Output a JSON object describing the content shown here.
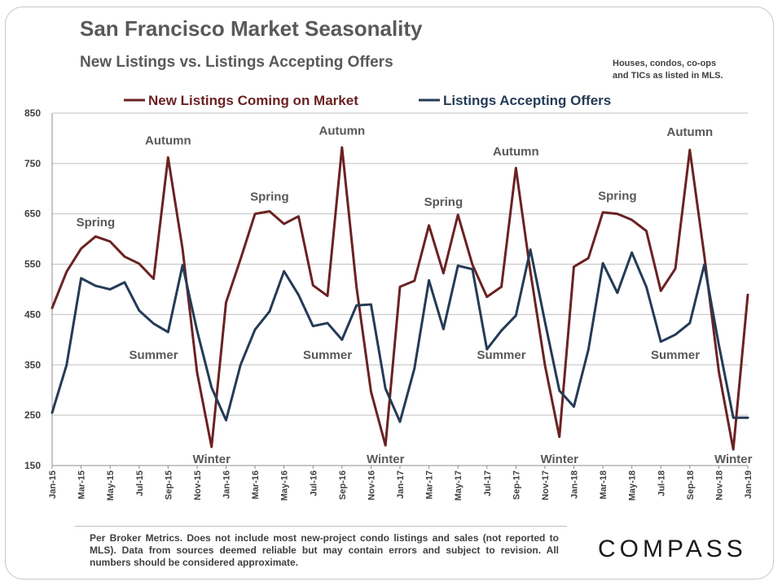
{
  "header": {
    "title": "San Francisco Market Seasonality",
    "subtitle": "New Listings vs. Listings Accepting Offers",
    "note_line1": "Houses, condos, co-ops",
    "note_line2": "and TICs as listed in MLS."
  },
  "footer": {
    "footnote": "Per Broker Metrics. Does not include most new-project condo listings and sales (not reported to MLS). Data from sources deemed reliable but may contain errors and subject to revision. All numbers should be considered approximate.",
    "logo": "COMPASS"
  },
  "colors": {
    "new_listings": "#6b2222",
    "accepting_offers": "#243b56",
    "grid": "#bfbfbf",
    "text": "#595959"
  },
  "chart_data": {
    "type": "line",
    "title": "San Francisco Market Seasonality",
    "subtitle": "New Listings vs. Listings Accepting Offers",
    "ylim": [
      150,
      850
    ],
    "yticks": [
      150,
      250,
      350,
      450,
      550,
      650,
      750,
      850
    ],
    "grid": true,
    "legend_position": "top",
    "x": [
      "Jan-15",
      "Feb-15",
      "Mar-15",
      "Apr-15",
      "May-15",
      "Jun-15",
      "Jul-15",
      "Aug-15",
      "Sep-15",
      "Oct-15",
      "Nov-15",
      "Dec-15",
      "Jan-16",
      "Feb-16",
      "Mar-16",
      "Apr-16",
      "May-16",
      "Jun-16",
      "Jul-16",
      "Aug-16",
      "Sep-16",
      "Oct-16",
      "Nov-16",
      "Dec-16",
      "Jan-17",
      "Feb-17",
      "Mar-17",
      "Apr-17",
      "May-17",
      "Jun-17",
      "Jul-17",
      "Aug-17",
      "Sep-17",
      "Oct-17",
      "Nov-17",
      "Dec-17",
      "Jan-18",
      "Feb-18",
      "Mar-18",
      "Apr-18",
      "May-18",
      "Jun-18",
      "Jul-18",
      "Aug-18",
      "Sep-18",
      "Oct-18",
      "Nov-18",
      "Dec-18",
      "Jan-19"
    ],
    "x_tick_labels": [
      "Jan-15",
      "Mar-15",
      "May-15",
      "Jul-15",
      "Sep-15",
      "Nov-15",
      "Jan-16",
      "Mar-16",
      "May-16",
      "Jul-16",
      "Sep-16",
      "Nov-16",
      "Jan-17",
      "Mar-17",
      "May-17",
      "Jul-17",
      "Sep-17",
      "Nov-17",
      "Jan-18",
      "Mar-18",
      "May-18",
      "Jul-18",
      "Sep-18",
      "Nov-18",
      "Jan-19"
    ],
    "series": [
      {
        "name": "New Listings Coming on Market",
        "color": "#6b2222",
        "values": [
          463,
          535,
          581,
          605,
          595,
          565,
          551,
          521,
          762,
          580,
          335,
          187,
          474,
          560,
          650,
          655,
          630,
          645,
          508,
          487,
          782,
          505,
          297,
          190,
          505,
          517,
          627,
          532,
          648,
          549,
          485,
          505,
          741,
          535,
          350,
          207,
          545,
          562,
          653,
          650,
          638,
          616,
          497,
          541,
          777,
          567,
          337,
          182,
          489
        ]
      },
      {
        "name": "Listings Accepting Offers",
        "color": "#243b56",
        "values": [
          255,
          350,
          522,
          507,
          500,
          514,
          458,
          432,
          415,
          548,
          418,
          305,
          240,
          350,
          420,
          456,
          536,
          489,
          427,
          433,
          400,
          468,
          470,
          303,
          237,
          343,
          518,
          421,
          547,
          540,
          381,
          418,
          448,
          579,
          436,
          299,
          267,
          380,
          552,
          493,
          573,
          505,
          396,
          410,
          433,
          549,
          390,
          245,
          245
        ]
      }
    ],
    "annotations": [
      {
        "text": "Spring",
        "x": "Apr-15",
        "y": 625
      },
      {
        "text": "Autumn",
        "x": "Sep-15",
        "y": 788
      },
      {
        "text": "Summer",
        "x": "Aug-15",
        "y": 362
      },
      {
        "text": "Winter",
        "x": "Dec-15",
        "y": 155
      },
      {
        "text": "Spring",
        "x": "Apr-16",
        "y": 676
      },
      {
        "text": "Autumn",
        "x": "Sep-16",
        "y": 807
      },
      {
        "text": "Summer",
        "x": "Aug-16",
        "y": 362
      },
      {
        "text": "Winter",
        "x": "Dec-16",
        "y": 155
      },
      {
        "text": "Spring",
        "x": "Apr-17",
        "y": 666
      },
      {
        "text": "Autumn",
        "x": "Sep-17",
        "y": 766
      },
      {
        "text": "Summer",
        "x": "Aug-17",
        "y": 362
      },
      {
        "text": "Winter",
        "x": "Dec-17",
        "y": 155
      },
      {
        "text": "Spring",
        "x": "Apr-18",
        "y": 678
      },
      {
        "text": "Autumn",
        "x": "Sep-18",
        "y": 805
      },
      {
        "text": "Summer",
        "x": "Aug-18",
        "y": 362
      },
      {
        "text": "Winter",
        "x": "Dec-18",
        "y": 155
      }
    ]
  }
}
